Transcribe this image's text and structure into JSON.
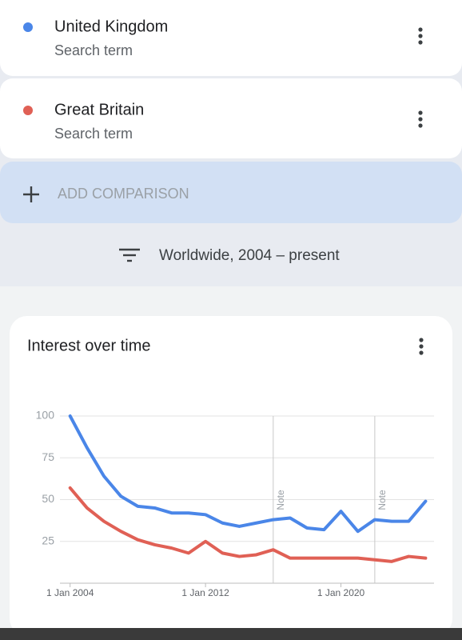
{
  "comparisons": [
    {
      "name": "United Kingdom",
      "subtitle": "Search term",
      "color": "#4a86e8"
    },
    {
      "name": "Great Britain",
      "subtitle": "Search term",
      "color": "#e06055"
    }
  ],
  "add_comparison": "ADD COMPARISON",
  "filter": "Worldwide, 2004 – present",
  "chart_data": {
    "type": "line",
    "title": "Interest over time",
    "x": [
      2004,
      2005,
      2006,
      2007,
      2008,
      2009,
      2010,
      2011,
      2012,
      2013,
      2014,
      2015,
      2016,
      2017,
      2018,
      2019,
      2020,
      2021,
      2022,
      2023,
      2024,
      2025
    ],
    "series": [
      {
        "name": "United Kingdom",
        "color": "#4a86e8",
        "values": [
          100,
          81,
          64,
          52,
          46,
          45,
          42,
          42,
          41,
          36,
          34,
          36,
          38,
          39,
          33,
          32,
          43,
          31,
          38,
          37,
          37,
          49
        ]
      },
      {
        "name": "Great Britain",
        "color": "#e06055",
        "values": [
          57,
          45,
          37,
          31,
          26,
          23,
          21,
          18,
          25,
          18,
          16,
          17,
          20,
          15,
          15,
          15,
          15,
          15,
          14,
          13,
          16,
          15
        ]
      }
    ],
    "xlim": [
      2003.4,
      2025.5
    ],
    "xticks": [
      {
        "value": 2004,
        "label": "1 Jan 2004"
      },
      {
        "value": 2012,
        "label": "1 Jan 2012"
      },
      {
        "value": 2020,
        "label": "1 Jan 2020"
      }
    ],
    "ylim": [
      0,
      100
    ],
    "yticks": [
      25,
      50,
      75,
      100
    ],
    "grid": true,
    "annotations": [
      {
        "x": 2016,
        "label": "Note"
      },
      {
        "x": 2022,
        "label": "Note"
      }
    ]
  }
}
